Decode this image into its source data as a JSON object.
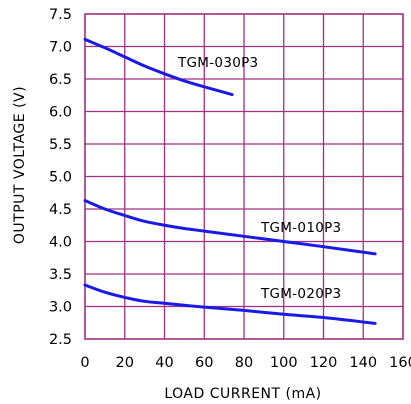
{
  "chart_data": {
    "type": "line",
    "xlabel": "LOAD CURRENT (mA)",
    "ylabel": "OUTPUT VOLTAGE (V)",
    "xlim": [
      0,
      160
    ],
    "ylim": [
      2.5,
      7.5
    ],
    "x_ticks": [
      0,
      20,
      40,
      60,
      80,
      100,
      120,
      140,
      160
    ],
    "y_ticks": [
      2.5,
      3.0,
      3.5,
      4.0,
      4.5,
      5.0,
      5.5,
      6.0,
      6.5,
      7.0,
      7.5
    ],
    "x_tick_labels": [
      "0",
      "20",
      "40",
      "60",
      "80",
      "100",
      "120",
      "140",
      "160"
    ],
    "y_tick_labels": [
      "2.5",
      "3.0",
      "3.5",
      "4.0",
      "4.5",
      "5.0",
      "5.5",
      "6.0",
      "6.5",
      "7.0",
      "7.5"
    ],
    "grid": true,
    "grid_color": "#a0307f",
    "line_color": "#1a1ae6",
    "series": [
      {
        "name": "TGM-030P3",
        "label": "TGM-030P3",
        "x": [
          0,
          10,
          20,
          30,
          40,
          50,
          60,
          74
        ],
        "y": [
          7.11,
          6.98,
          6.84,
          6.7,
          6.58,
          6.47,
          6.38,
          6.26
        ]
      },
      {
        "name": "TGM-010P3",
        "label": "TGM-010P3",
        "x": [
          0,
          10,
          20,
          30,
          40,
          50,
          60,
          80,
          100,
          120,
          146
        ],
        "y": [
          4.63,
          4.5,
          4.4,
          4.31,
          4.25,
          4.2,
          4.16,
          4.08,
          4.0,
          3.92,
          3.81
        ]
      },
      {
        "name": "TGM-020P3",
        "label": "TGM-020P3",
        "x": [
          0,
          10,
          20,
          30,
          40,
          60,
          80,
          100,
          120,
          146
        ],
        "y": [
          3.33,
          3.22,
          3.14,
          3.08,
          3.05,
          2.99,
          2.94,
          2.88,
          2.83,
          2.74
        ]
      }
    ]
  }
}
